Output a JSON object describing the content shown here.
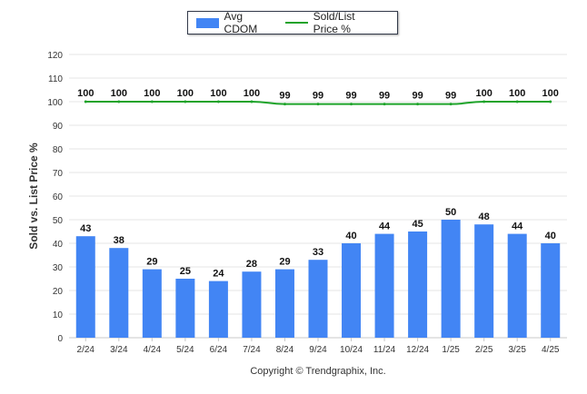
{
  "legend": {
    "series1": "Avg CDOM",
    "series2": "Sold/List Price %"
  },
  "footer": "Copyright © Trendgraphix, Inc.",
  "colors": {
    "bar": "#4285f4",
    "line": "#1ea32a",
    "grid": "#e6e6e6"
  },
  "chart_data": {
    "type": "bar",
    "categories": [
      "2/24",
      "3/24",
      "4/24",
      "5/24",
      "6/24",
      "7/24",
      "8/24",
      "9/24",
      "10/24",
      "11/24",
      "12/24",
      "1/25",
      "2/25",
      "3/25",
      "4/25"
    ],
    "series": [
      {
        "name": "Avg CDOM",
        "type": "bar",
        "values": [
          43,
          38,
          29,
          25,
          24,
          28,
          29,
          33,
          40,
          44,
          45,
          50,
          48,
          44,
          40
        ]
      },
      {
        "name": "Sold/List Price %",
        "type": "line",
        "values": [
          100,
          100,
          100,
          100,
          100,
          100,
          99,
          99,
          99,
          99,
          99,
          99,
          100,
          100,
          100
        ]
      }
    ],
    "ylabel": "Sold vs. List Price %",
    "ylim": [
      0,
      120
    ],
    "yticks": [
      0,
      10,
      20,
      30,
      40,
      50,
      60,
      70,
      80,
      90,
      100,
      110,
      120
    ],
    "grid": true,
    "legend_position": "top"
  }
}
